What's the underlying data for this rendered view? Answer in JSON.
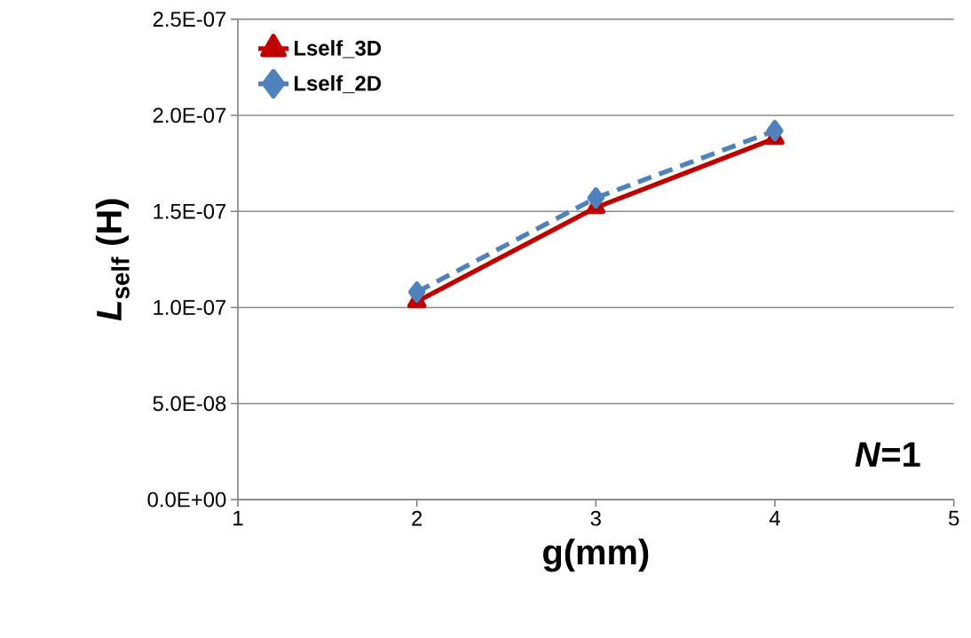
{
  "chart_data": {
    "type": "line",
    "xlabel": "g(mm)",
    "ylabel": "*L*$_{self}$ (H)",
    "x": [
      2,
      3,
      4
    ],
    "series": [
      {
        "name": "Lself_3D",
        "color": "#c00000",
        "values": [
          1.03e-07,
          1.52e-07,
          1.88e-07
        ],
        "marker": "triangle",
        "line_style": "solid"
      },
      {
        "name": "Lself_2D",
        "color": "#4f81bd",
        "values": [
          1.08e-07,
          1.57e-07,
          1.92e-07
        ],
        "marker": "diamond",
        "line_style": "dashed"
      }
    ],
    "xlim": [
      1,
      5
    ],
    "xticks": [
      1,
      2,
      3,
      4,
      5
    ],
    "ylim": [
      0,
      2.5e-07
    ],
    "yticks": [
      {
        "value": 0,
        "label": "0.0E+00"
      },
      {
        "value": 5e-08,
        "label": "5.0E-08"
      },
      {
        "value": 1e-07,
        "label": "1.0E-07"
      },
      {
        "value": 1.5e-07,
        "label": "1.5E-07"
      },
      {
        "value": 2e-07,
        "label": "2.0E-07"
      },
      {
        "value": 2.5e-07,
        "label": "2.5E-07"
      }
    ],
    "grid": "y",
    "legend": "top left",
    "annotations": [
      "*N*=1"
    ]
  }
}
